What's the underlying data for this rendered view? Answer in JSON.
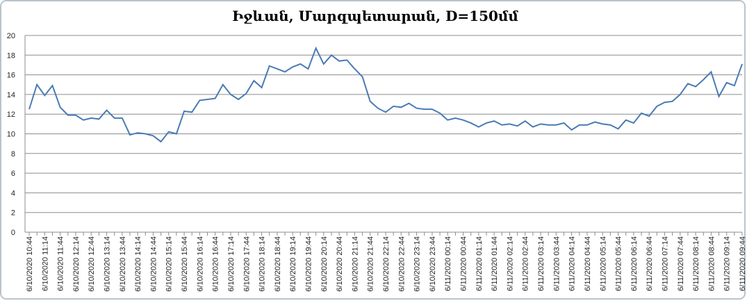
{
  "chart_data": {
    "type": "line",
    "title": "Իջևան, Մարզպետարան, D=150մմ",
    "categories": [
      "6/10/2020 10:44",
      null,
      "6/10/2020 11:14",
      null,
      "6/10/2020 11:44",
      null,
      "6/10/2020 12:14",
      null,
      "6/10/2020 12:44",
      null,
      "6/10/2020 13:14",
      null,
      "6/10/2020 13:44",
      null,
      "6/10/2020 14:14",
      null,
      "6/10/2020 14:44",
      null,
      "6/10/2020 15:14",
      null,
      "6/10/2020 15:44",
      null,
      "6/10/2020 16:14",
      null,
      "6/10/2020 16:44",
      null,
      "6/10/2020 17:14",
      null,
      "6/10/2020 17:44",
      null,
      "6/10/2020 18:14",
      null,
      "6/10/2020 18:44",
      null,
      "6/10/2020 19:14",
      null,
      "6/10/2020 19:44",
      null,
      "6/10/2020 20:14",
      null,
      "6/10/2020 20:44",
      null,
      "6/10/2020 21:14",
      null,
      "6/10/2020 21:44",
      null,
      "6/10/2020 22:14",
      null,
      "6/10/2020 22:44",
      null,
      "6/10/2020 23:14",
      null,
      "6/10/2020 23:44",
      null,
      "6/11/2020 00:14",
      null,
      "6/11/2020 00:44",
      null,
      "6/11/2020 01:14",
      null,
      "6/11/2020 01:44",
      null,
      "6/11/2020 02:14",
      null,
      "6/11/2020 02:44",
      null,
      "6/11/2020 03:14",
      null,
      "6/11/2020 03:44",
      null,
      "6/11/2020 04:14",
      null,
      "6/11/2020 04:44",
      null,
      "6/11/2020 05:14",
      null,
      "6/11/2020 05:44",
      null,
      "6/11/2020 06:14",
      null,
      "6/11/2020 06:44",
      null,
      "6/11/2020 07:14",
      null,
      "6/11/2020 07:44",
      null,
      "6/11/2020 08:14",
      null,
      "6/11/2020 08:44",
      null,
      "6/11/2020 09:14",
      null,
      "6/11/2020 09:44"
    ],
    "series": [
      {
        "color": "#4a7ab5",
        "values": [
          12.5,
          15.0,
          13.9,
          14.9,
          12.7,
          11.9,
          11.9,
          11.4,
          11.6,
          11.5,
          12.4,
          11.6,
          11.6,
          9.9,
          10.1,
          10.0,
          9.8,
          9.2,
          10.2,
          10.0,
          12.3,
          12.2,
          13.4,
          13.5,
          13.6,
          15.0,
          14.0,
          13.5,
          14.1,
          15.4,
          14.7,
          16.9,
          16.6,
          16.3,
          16.8,
          17.1,
          16.6,
          18.7,
          17.1,
          18.0,
          17.4,
          17.5,
          16.6,
          15.8,
          13.3,
          12.6,
          12.2,
          12.8,
          12.7,
          13.1,
          12.6,
          12.5,
          12.5,
          12.1,
          11.4,
          11.6,
          11.4,
          11.1,
          10.7,
          11.1,
          11.3,
          10.9,
          11.0,
          10.8,
          11.3,
          10.7,
          11.0,
          10.9,
          10.9,
          11.1,
          10.4,
          10.9,
          10.9,
          11.2,
          11.0,
          10.9,
          10.5,
          11.4,
          11.1,
          12.1,
          11.8,
          12.8,
          13.2,
          13.3,
          14.0,
          15.1,
          14.8,
          15.5,
          16.3,
          13.8,
          15.2,
          14.9,
          17.1
        ]
      }
    ],
    "ylim": [
      0,
      20
    ],
    "yticks": [
      0,
      2,
      4,
      6,
      8,
      10,
      12,
      14,
      16,
      18,
      20
    ],
    "grid": true
  }
}
